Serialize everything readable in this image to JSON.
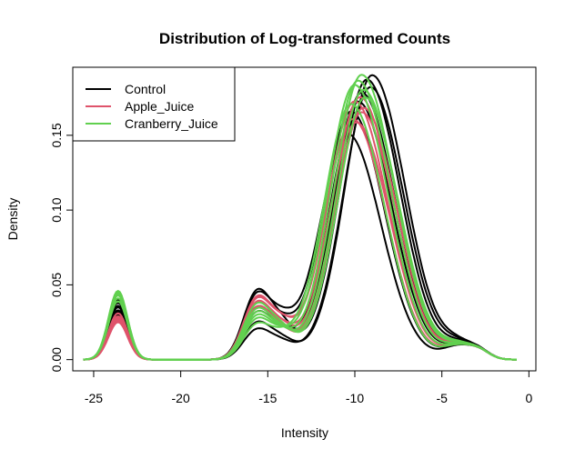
{
  "chart_data": {
    "type": "line",
    "title": "Distribution of Log-transformed Counts",
    "xlabel": "Intensity",
    "ylabel": "Density",
    "xlim": [
      -26.2,
      0.4
    ],
    "ylim": [
      -0.0075,
      0.1955
    ],
    "x_ticks": [
      -25,
      -20,
      -15,
      -10,
      -5,
      0
    ],
    "x_tick_labels": [
      "-25",
      "-20",
      "-15",
      "-10",
      "-5",
      "0"
    ],
    "y_ticks": [
      0.0,
      0.05,
      0.1,
      0.15
    ],
    "y_tick_labels": [
      "0.00",
      "0.05",
      "0.10",
      "0.15"
    ],
    "legend": {
      "position": "top-left",
      "entries": [
        {
          "label": "Control",
          "color": "#000000"
        },
        {
          "label": "Apple_Juice",
          "color": "#DF536B"
        },
        {
          "label": "Cranberry_Juice",
          "color": "#61D04F"
        }
      ]
    },
    "series": [
      {
        "name": "Control",
        "color": "#000000",
        "samples": [
          {
            "a": 0.038,
            "b": 0.041,
            "ph": 0.187,
            "px": -9.3
          },
          {
            "a": 0.035,
            "b": 0.031,
            "ph": 0.178,
            "px": -9.6
          },
          {
            "a": 0.033,
            "b": 0.022,
            "ph": 0.19,
            "px": -9.0
          },
          {
            "a": 0.04,
            "b": 0.036,
            "ph": 0.165,
            "px": -10.2
          },
          {
            "a": 0.03,
            "b": 0.018,
            "ph": 0.182,
            "px": -9.1
          },
          {
            "a": 0.036,
            "b": 0.039,
            "ph": 0.15,
            "px": -10.4
          },
          {
            "a": 0.032,
            "b": 0.028,
            "ph": 0.172,
            "px": -9.8
          }
        ]
      },
      {
        "name": "Apple_Juice",
        "color": "#DF536B",
        "samples": [
          {
            "a": 0.027,
            "b": 0.034,
            "ph": 0.175,
            "px": -9.7
          },
          {
            "a": 0.029,
            "b": 0.036,
            "ph": 0.16,
            "px": -10.1
          },
          {
            "a": 0.025,
            "b": 0.03,
            "ph": 0.168,
            "px": -9.5
          },
          {
            "a": 0.031,
            "b": 0.033,
            "ph": 0.158,
            "px": -9.9
          },
          {
            "a": 0.028,
            "b": 0.037,
            "ph": 0.172,
            "px": -10.0
          },
          {
            "a": 0.026,
            "b": 0.031,
            "ph": 0.165,
            "px": -9.6
          }
        ]
      },
      {
        "name": "Cranberry_Juice",
        "color": "#61D04F",
        "samples": [
          {
            "a": 0.046,
            "b": 0.028,
            "ph": 0.19,
            "px": -9.6
          },
          {
            "a": 0.043,
            "b": 0.024,
            "ph": 0.183,
            "px": -10.0
          },
          {
            "a": 0.041,
            "b": 0.033,
            "ph": 0.175,
            "px": -9.4
          },
          {
            "a": 0.044,
            "b": 0.026,
            "ph": 0.186,
            "px": -9.8
          },
          {
            "a": 0.039,
            "b": 0.021,
            "ph": 0.17,
            "px": -10.2
          },
          {
            "a": 0.045,
            "b": 0.03,
            "ph": 0.18,
            "px": -9.5
          }
        ]
      }
    ]
  }
}
